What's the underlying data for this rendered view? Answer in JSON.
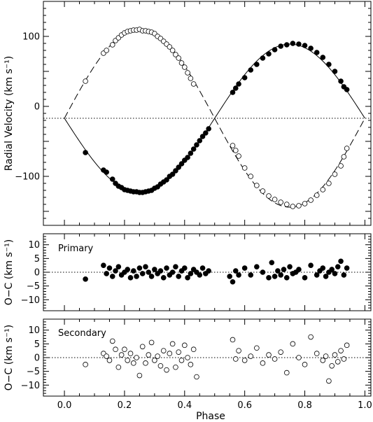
{
  "chart_data": [
    {
      "type": "scatter",
      "panel": "radial-velocity",
      "ylabel": "Radial Velocity (km s⁻¹)",
      "xlim": [
        -0.07,
        1.02
      ],
      "ylim": [
        -170,
        150
      ],
      "xticks": [
        0.0,
        0.2,
        0.4,
        0.6,
        0.8,
        1.0
      ],
      "yticks": [
        -100,
        0,
        100
      ],
      "systemic_velocity": -17,
      "model": {
        "gamma": -17,
        "K1": 106,
        "K2": 127
      },
      "series": [
        {
          "name": "Primary",
          "marker": "filled",
          "x": [
            0.07,
            0.13,
            0.14,
            0.16,
            0.17,
            0.18,
            0.19,
            0.2,
            0.21,
            0.22,
            0.23,
            0.24,
            0.25,
            0.26,
            0.27,
            0.28,
            0.29,
            0.3,
            0.31,
            0.32,
            0.33,
            0.34,
            0.35,
            0.36,
            0.37,
            0.38,
            0.39,
            0.4,
            0.41,
            0.42,
            0.43,
            0.44,
            0.45,
            0.46,
            0.47,
            0.48,
            0.56,
            0.57,
            0.58,
            0.6,
            0.62,
            0.64,
            0.66,
            0.68,
            0.7,
            0.72,
            0.74,
            0.76,
            0.78,
            0.8,
            0.82,
            0.84,
            0.86,
            0.88,
            0.9,
            0.92,
            0.93,
            0.94
          ],
          "y": [
            -66,
            -91,
            -94,
            -104,
            -110,
            -114,
            -116,
            -119,
            -120,
            -121,
            -122,
            -122,
            -123,
            -123,
            -122,
            -121,
            -120,
            -117,
            -115,
            -111,
            -108,
            -105,
            -100,
            -97,
            -92,
            -87,
            -82,
            -77,
            -73,
            -67,
            -61,
            -55,
            -49,
            -43,
            -38,
            -32,
            20,
            26,
            32,
            41,
            52,
            60,
            69,
            75,
            81,
            86,
            88,
            90,
            89,
            87,
            83,
            77,
            70,
            60,
            50,
            36,
            28,
            24
          ]
        },
        {
          "name": "Secondary",
          "marker": "open",
          "x": [
            0.07,
            0.13,
            0.14,
            0.16,
            0.17,
            0.18,
            0.19,
            0.2,
            0.21,
            0.22,
            0.23,
            0.24,
            0.25,
            0.26,
            0.27,
            0.28,
            0.29,
            0.3,
            0.31,
            0.32,
            0.33,
            0.34,
            0.35,
            0.36,
            0.37,
            0.38,
            0.39,
            0.4,
            0.41,
            0.42,
            0.43,
            0.56,
            0.57,
            0.58,
            0.6,
            0.62,
            0.64,
            0.66,
            0.68,
            0.7,
            0.72,
            0.74,
            0.76,
            0.78,
            0.8,
            0.82,
            0.84,
            0.86,
            0.88,
            0.9,
            0.92,
            0.93,
            0.94
          ],
          "y": [
            36,
            76,
            80,
            88,
            94,
            98,
            102,
            105,
            107,
            108,
            109,
            109,
            110,
            108,
            108,
            107,
            106,
            104,
            100,
            97,
            93,
            89,
            85,
            80,
            74,
            69,
            62,
            56,
            48,
            40,
            32,
            -56,
            -63,
            -71,
            -88,
            -100,
            -113,
            -121,
            -128,
            -133,
            -137,
            -140,
            -143,
            -142,
            -139,
            -134,
            -127,
            -119,
            -110,
            -97,
            -85,
            -72,
            -60
          ]
        }
      ]
    },
    {
      "type": "scatter",
      "panel": "residuals-primary",
      "annotation": "Primary",
      "ylabel": "O−C (km s⁻¹)",
      "xlim": [
        -0.07,
        1.02
      ],
      "ylim": [
        -14,
        14
      ],
      "xticks": [
        0.0,
        0.2,
        0.4,
        0.6,
        0.8,
        1.0
      ],
      "yticks": [
        -10,
        -5,
        0,
        5,
        10
      ],
      "series": [
        {
          "marker": "filled",
          "x": [
            0.07,
            0.13,
            0.14,
            0.15,
            0.16,
            0.17,
            0.18,
            0.19,
            0.2,
            0.21,
            0.22,
            0.23,
            0.24,
            0.25,
            0.26,
            0.27,
            0.28,
            0.29,
            0.3,
            0.31,
            0.32,
            0.33,
            0.34,
            0.35,
            0.36,
            0.37,
            0.38,
            0.39,
            0.4,
            0.41,
            0.42,
            0.43,
            0.44,
            0.45,
            0.46,
            0.47,
            0.48,
            0.55,
            0.56,
            0.57,
            0.58,
            0.6,
            0.62,
            0.64,
            0.66,
            0.68,
            0.69,
            0.7,
            0.71,
            0.72,
            0.73,
            0.74,
            0.75,
            0.76,
            0.77,
            0.78,
            0.8,
            0.82,
            0.84,
            0.85,
            0.86,
            0.87,
            0.88,
            0.89,
            0.9,
            0.91,
            0.92,
            0.93,
            0.94
          ],
          "y": [
            -2.5,
            2.5,
            -0.5,
            1.5,
            -1.5,
            0.5,
            2,
            -1,
            0,
            1,
            -2,
            0.5,
            -1.5,
            1.5,
            -0.5,
            2,
            0,
            -1.5,
            1,
            -0.5,
            0.5,
            -2,
            1.5,
            -1,
            0,
            2,
            -1.5,
            0.5,
            1.5,
            -2,
            -0.5,
            1,
            0,
            -1,
            1.5,
            -0.5,
            0.5,
            -1.5,
            -3.5,
            0.5,
            -1,
            1.5,
            -1,
            2,
            0,
            -2,
            3.5,
            -1.5,
            0.5,
            -1,
            1,
            -2,
            2,
            -0.5,
            0,
            1,
            -2,
            2.5,
            -1,
            0.5,
            1.5,
            -1.5,
            0,
            1,
            -0.5,
            2,
            4,
            -1,
            1.5
          ]
        }
      ]
    },
    {
      "type": "scatter",
      "panel": "residuals-secondary",
      "annotation": "Secondary",
      "ylabel": "O−C (km s⁻¹)",
      "xlabel": "Phase",
      "xlim": [
        -0.07,
        1.02
      ],
      "ylim": [
        -14,
        14
      ],
      "xticks": [
        0.0,
        0.2,
        0.4,
        0.6,
        0.8,
        1.0
      ],
      "xticklabels": [
        "0.0",
        "0.2",
        "0.4",
        "0.6",
        "0.8",
        "1.0"
      ],
      "yticks": [
        -10,
        -5,
        0,
        5,
        10
      ],
      "series": [
        {
          "marker": "open",
          "x": [
            0.07,
            0.13,
            0.14,
            0.15,
            0.16,
            0.17,
            0.18,
            0.19,
            0.2,
            0.21,
            0.22,
            0.23,
            0.24,
            0.25,
            0.26,
            0.27,
            0.28,
            0.29,
            0.3,
            0.31,
            0.32,
            0.33,
            0.34,
            0.35,
            0.36,
            0.37,
            0.38,
            0.39,
            0.4,
            0.41,
            0.42,
            0.43,
            0.44,
            0.56,
            0.57,
            0.58,
            0.6,
            0.62,
            0.64,
            0.66,
            0.68,
            0.7,
            0.72,
            0.74,
            0.76,
            0.78,
            0.8,
            0.82,
            0.84,
            0.86,
            0.87,
            0.88,
            0.89,
            0.9,
            0.91,
            0.92,
            0.93,
            0.94
          ],
          "y": [
            -2.5,
            1.5,
            0.5,
            -1,
            6,
            3,
            -3.5,
            1,
            3,
            -1,
            1.5,
            -2,
            0,
            -6.5,
            4,
            -2,
            1,
            5.5,
            -1,
            0.5,
            -3,
            2.5,
            -4.5,
            1.5,
            5,
            -3.5,
            2,
            -1,
            4.5,
            0,
            -2.5,
            3,
            -7,
            6.5,
            -0.5,
            2.5,
            -1,
            0.5,
            3.5,
            -2,
            1,
            -0.5,
            2,
            -5.5,
            5,
            0,
            -2.5,
            7.5,
            1.5,
            -1,
            0.5,
            -8.5,
            -3,
            1,
            -1.5,
            2.5,
            -0.5,
            4.5
          ]
        }
      ]
    }
  ]
}
